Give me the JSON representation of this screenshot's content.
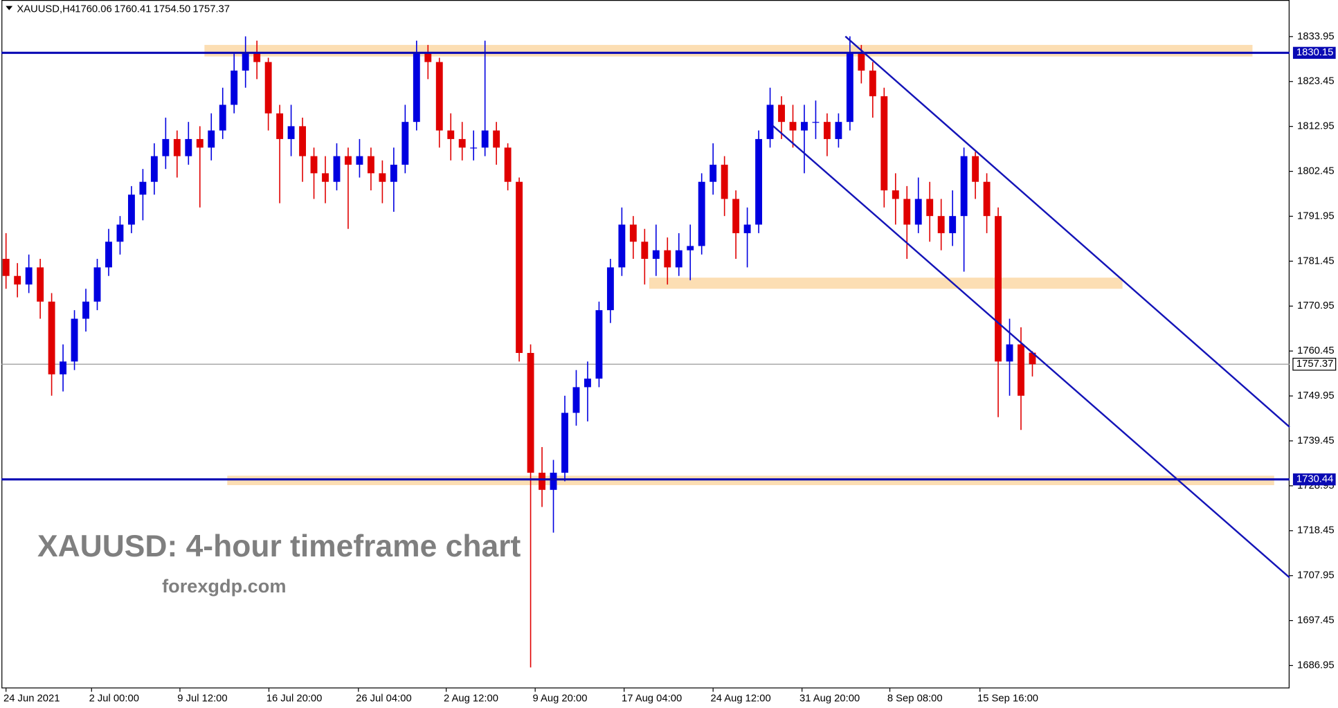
{
  "header": {
    "symbol": "XAUUSD,H4",
    "values": [
      "1760.06",
      "1760.41",
      "1754.50",
      "1757.37"
    ]
  },
  "chart_data": {
    "type": "candlestick",
    "annotations": [
      "XAUUSD: 4-hour timeframe chart",
      "forexgdp.com"
    ],
    "up_color": "#0000e0",
    "down_color": "#e00000",
    "candles": {
      "open": [
        1782,
        1778,
        1776,
        1780,
        1772,
        1755,
        1758,
        1768,
        1772,
        1780,
        1786,
        1790,
        1797,
        1800,
        1806,
        1810,
        1806,
        1810,
        1808,
        1812,
        1818,
        1826,
        1830,
        1828,
        1816,
        1810,
        1813,
        1806,
        1802,
        1800,
        1806,
        1804,
        1806,
        1802,
        1800,
        1804,
        1814,
        1830,
        1828,
        1812,
        1810,
        1808,
        1808,
        1812,
        1808,
        1800,
        1760,
        1732,
        1728,
        1732,
        1746,
        1752,
        1754,
        1770,
        1780,
        1790,
        1786,
        1782,
        1784,
        1780,
        1784,
        1785,
        1800,
        1804,
        1796,
        1788,
        1790,
        1810,
        1818,
        1814,
        1812,
        1814,
        1814,
        1810,
        1814,
        1830,
        1826,
        1820,
        1798,
        1796,
        1790,
        1796,
        1792,
        1788,
        1792,
        1806,
        1800,
        1792,
        1758,
        1762,
        1760.06
      ],
      "high": [
        1788,
        1781,
        1783,
        1782,
        1774,
        1762,
        1770,
        1775,
        1782,
        1789,
        1792,
        1799,
        1803,
        1809,
        1815,
        1812,
        1814,
        1813,
        1816,
        1822,
        1830,
        1834,
        1833,
        1829,
        1818,
        1818,
        1815,
        1808,
        1806,
        1809,
        1808,
        1810,
        1808,
        1805,
        1808,
        1818,
        1833,
        1832,
        1829,
        1816,
        1814,
        1812,
        1833,
        1814,
        1809,
        1801,
        1762,
        1738,
        1735,
        1750,
        1756,
        1758,
        1772,
        1782,
        1794,
        1792,
        1789,
        1790,
        1787,
        1788,
        1790,
        1802,
        1809,
        1806,
        1798,
        1794,
        1812,
        1822,
        1820,
        1818,
        1818,
        1819,
        1816,
        1816,
        1834,
        1832,
        1828,
        1822,
        1802,
        1799,
        1801,
        1800,
        1796,
        1798,
        1808,
        1807,
        1802,
        1794,
        1768,
        1766,
        1760.41
      ],
      "low": [
        1775,
        1773,
        1774,
        1768,
        1750,
        1751,
        1756,
        1765,
        1770,
        1778,
        1783,
        1788,
        1791,
        1797,
        1803,
        1801,
        1804,
        1794,
        1805,
        1810,
        1816,
        1822,
        1824,
        1812,
        1795,
        1806,
        1800,
        1796,
        1795,
        1798,
        1789,
        1801,
        1798,
        1795,
        1793,
        1802,
        1812,
        1824,
        1808,
        1805,
        1805,
        1805,
        1806,
        1804,
        1798,
        1758,
        1686.5,
        1724,
        1718,
        1730,
        1743,
        1744,
        1752,
        1767,
        1778,
        1782,
        1776,
        1778,
        1776,
        1778,
        1777,
        1783,
        1797,
        1792,
        1782,
        1780,
        1788,
        1808,
        1810,
        1808,
        1802,
        1810,
        1806,
        1808,
        1812,
        1823,
        1815,
        1794,
        1790,
        1782,
        1788,
        1786,
        1784,
        1785,
        1779,
        1796,
        1788,
        1745,
        1750,
        1742,
        1754.5
      ],
      "close": [
        1778,
        1776,
        1780,
        1772,
        1755,
        1758,
        1768,
        1772,
        1780,
        1786,
        1790,
        1797,
        1800,
        1806,
        1810,
        1806,
        1810,
        1808,
        1812,
        1818,
        1826,
        1830,
        1828,
        1816,
        1810,
        1813,
        1806,
        1802,
        1800,
        1806,
        1804,
        1806,
        1802,
        1800,
        1804,
        1814,
        1830,
        1828,
        1812,
        1810,
        1808,
        1808,
        1812,
        1808,
        1800,
        1760,
        1732,
        1728,
        1732,
        1746,
        1752,
        1754,
        1770,
        1780,
        1790,
        1786,
        1782,
        1784,
        1780,
        1784,
        1785,
        1800,
        1804,
        1796,
        1788,
        1790,
        1810,
        1818,
        1814,
        1812,
        1814,
        1814,
        1810,
        1814,
        1830,
        1826,
        1820,
        1798,
        1796,
        1790,
        1796,
        1792,
        1788,
        1792,
        1806,
        1800,
        1792,
        1758,
        1762,
        1750,
        1757.37
      ]
    },
    "xlim": [
      -0.4,
      112.55
    ],
    "xticks": [
      {
        "value": 0,
        "label": "24 Jun 2021"
      },
      {
        "value": 7.5,
        "label": "2 Jul 00:00"
      },
      {
        "value": 15.25,
        "label": "9 Jul 12:00"
      },
      {
        "value": 23.05,
        "label": "16 Jul 20:00"
      },
      {
        "value": 30.9,
        "label": "26 Jul 04:00"
      },
      {
        "value": 38.6,
        "label": "2 Aug 12:00"
      },
      {
        "value": 46.4,
        "label": "9 Aug 20:00"
      },
      {
        "value": 54.2,
        "label": "17 Aug 04:00"
      },
      {
        "value": 62,
        "label": "24 Aug 12:00"
      },
      {
        "value": 69.8,
        "label": "31 Aug 20:00"
      },
      {
        "value": 77.5,
        "label": "8 Sep 08:00"
      },
      {
        "value": 85.4,
        "label": "15 Sep 16:00"
      }
    ],
    "ylim": [
      1681.6,
      1842.5
    ],
    "yticks": [
      1833.95,
      1823.45,
      1812.95,
      1802.45,
      1791.95,
      1781.45,
      1770.95,
      1760.45,
      1749.95,
      1739.45,
      1728.95,
      1718.45,
      1707.95,
      1697.45,
      1686.95
    ],
    "levels": [
      1830.15,
      1730.44
    ],
    "level_color": "#0a0ab4",
    "zones": [
      {
        "x": [
          17.4,
          109.3
        ],
        "y": [
          1829.3,
          1832
        ]
      },
      {
        "x": [
          56.4,
          97.9
        ],
        "y": [
          1775,
          1777.6
        ]
      },
      {
        "x": [
          19.4,
          111.2
        ],
        "y": [
          1729.1,
          1731.3
        ]
      }
    ],
    "zone_color": "#fbd8a6",
    "trendlines": [
      {
        "x": [
          73.6,
          112.55
        ],
        "y": [
          1834,
          1742.7
        ]
      },
      {
        "x": [
          67.2,
          112.55
        ],
        "y": [
          1813.2,
          1707.5
        ]
      }
    ],
    "trend_color": "#1414b8"
  }
}
